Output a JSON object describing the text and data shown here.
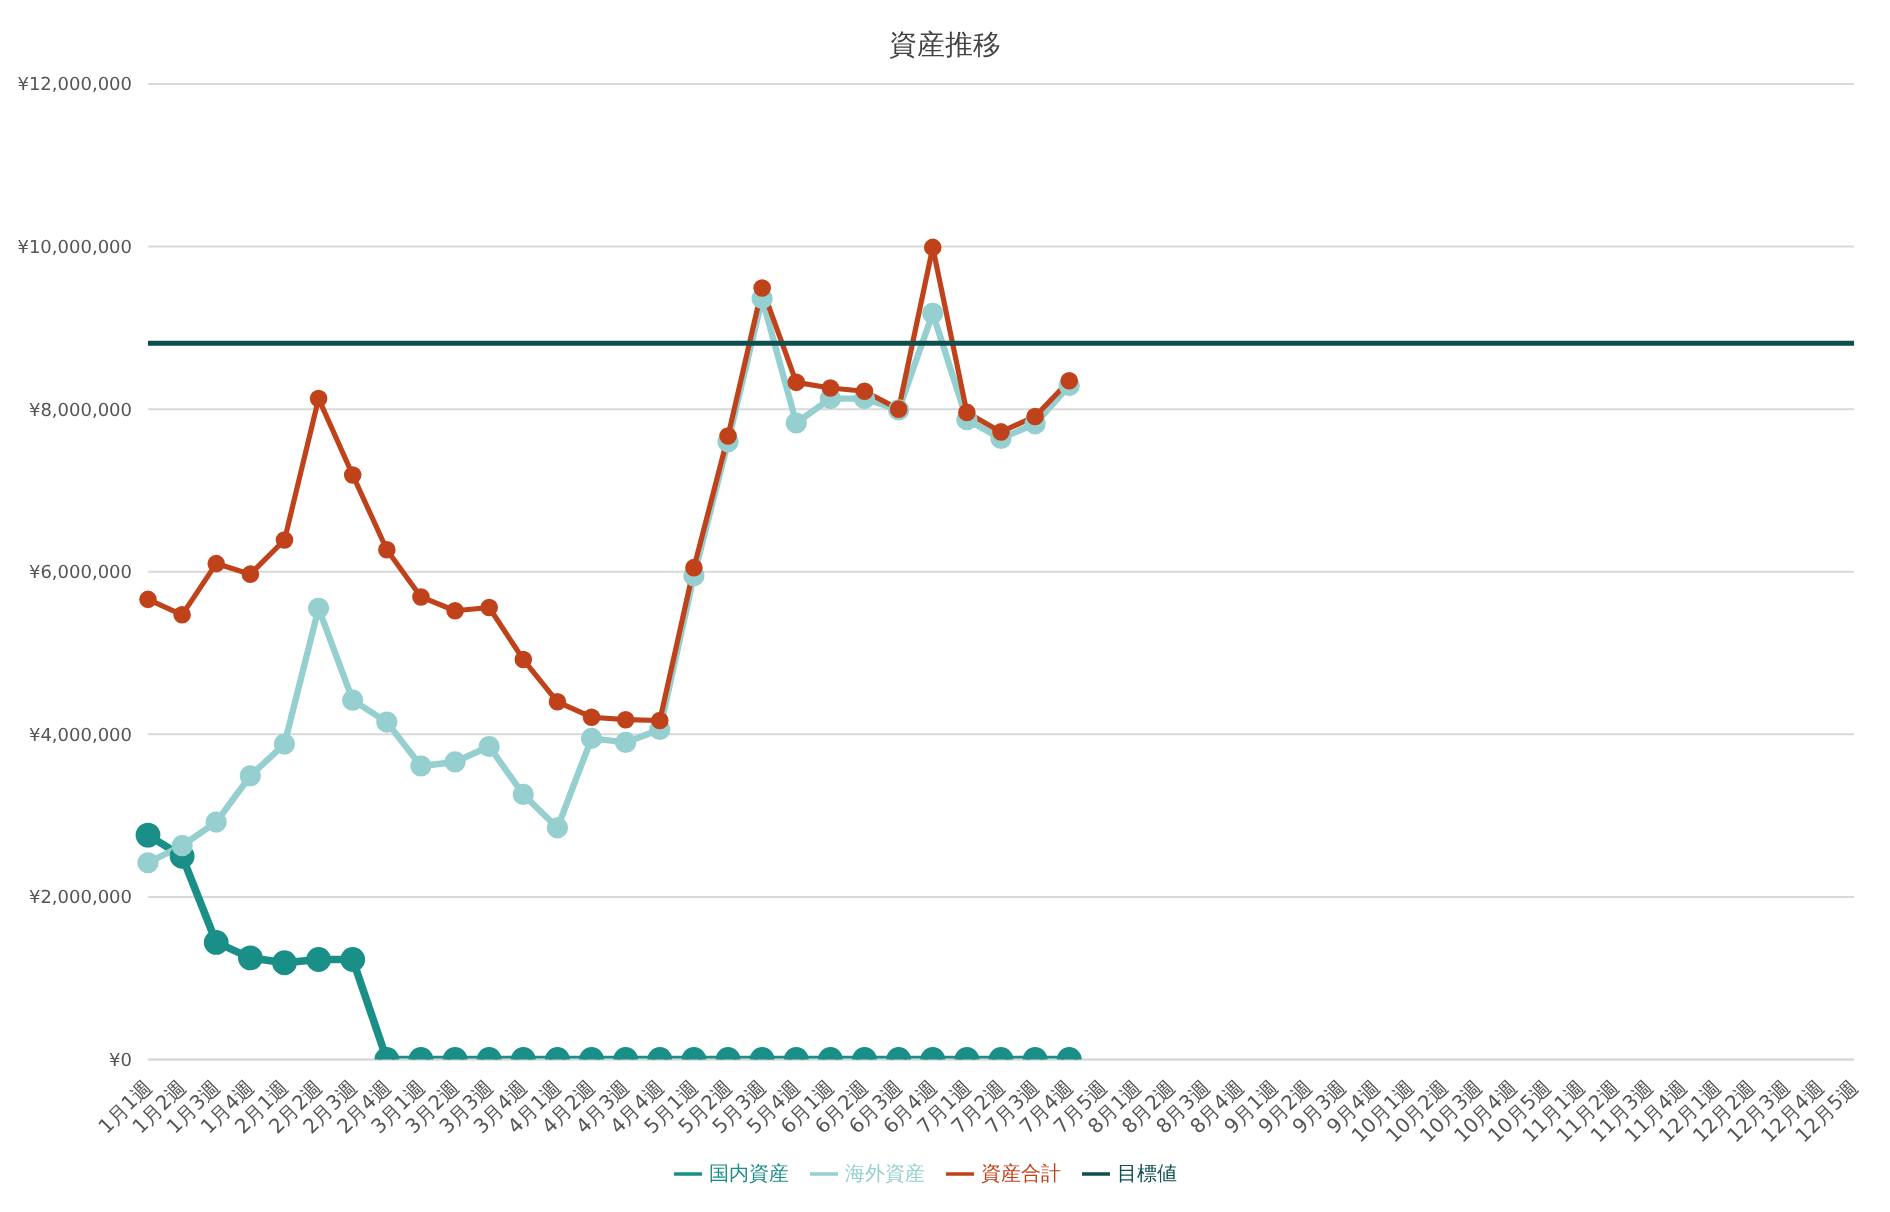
{
  "chart_data": {
    "type": "line",
    "title": "資産推移",
    "categories": [
      "1月1週",
      "1月2週",
      "1月3週",
      "1月4週",
      "2月1週",
      "2月2週",
      "2月3週",
      "2月4週",
      "3月1週",
      "3月2週",
      "3月3週",
      "3月4週",
      "4月1週",
      "4月2週",
      "4月3週",
      "4月4週",
      "5月1週",
      "5月2週",
      "5月3週",
      "5月4週",
      "6月1週",
      "6月2週",
      "6月3週",
      "6月4週",
      "7月1週",
      "7月2週",
      "7月3週",
      "7月4週",
      "7月5週",
      "8月1週",
      "8月2週",
      "8月3週",
      "8月4週",
      "9月1週",
      "9月2週",
      "9月3週",
      "9月4週",
      "10月1週",
      "10月2週",
      "10月3週",
      "10月4週",
      "10月5週",
      "11月1週",
      "11月2週",
      "11月3週",
      "11月4週",
      "12月1週",
      "12月2週",
      "12月3週",
      "12月4週",
      "12月5週"
    ],
    "series": [
      {
        "name": "国内資産",
        "color": "#1a8f87",
        "marker": "circle",
        "values": [
          2760000,
          2500000,
          1440000,
          1250000,
          1190000,
          1230000,
          1230000,
          0,
          0,
          0,
          0,
          0,
          0,
          0,
          0,
          0,
          0,
          0,
          0,
          0,
          0,
          0,
          0,
          0,
          0,
          0,
          0,
          0,
          null,
          null,
          null,
          null,
          null,
          null,
          null,
          null,
          null,
          null,
          null,
          null,
          null,
          null,
          null,
          null,
          null,
          null,
          null,
          null,
          null,
          null,
          null
        ]
      },
      {
        "name": "海外資産",
        "color": "#96cfcf",
        "marker": "circle",
        "values": [
          2420000,
          2630000,
          2920000,
          3490000,
          3880000,
          5550000,
          4420000,
          4150000,
          3610000,
          3660000,
          3850000,
          3260000,
          2850000,
          3950000,
          3900000,
          4060000,
          5950000,
          7600000,
          9360000,
          7830000,
          8130000,
          8130000,
          7990000,
          9180000,
          7870000,
          7640000,
          7820000,
          8290000,
          null,
          null,
          null,
          null,
          null,
          null,
          null,
          null,
          null,
          null,
          null,
          null,
          null,
          null,
          null,
          null,
          null,
          null,
          null,
          null,
          null,
          null,
          null
        ]
      },
      {
        "name": "資産合計",
        "color": "#c0421a",
        "marker": "circle",
        "values": [
          5660000,
          5470000,
          6100000,
          5970000,
          6390000,
          8130000,
          7190000,
          6270000,
          5690000,
          5520000,
          5560000,
          4920000,
          4400000,
          4210000,
          4180000,
          4170000,
          6050000,
          7670000,
          9490000,
          8330000,
          8260000,
          8220000,
          8000000,
          9990000,
          7960000,
          7720000,
          7910000,
          8350000,
          null,
          null,
          null,
          null,
          null,
          null,
          null,
          null,
          null,
          null,
          null,
          null,
          null,
          null,
          null,
          null,
          null,
          null,
          null,
          null,
          null,
          null,
          null
        ]
      },
      {
        "name": "目標値",
        "color": "#0d4f4f",
        "marker": "none",
        "values": [
          8810000,
          8810000,
          8810000,
          8810000,
          8810000,
          8810000,
          8810000,
          8810000,
          8810000,
          8810000,
          8810000,
          8810000,
          8810000,
          8810000,
          8810000,
          8810000,
          8810000,
          8810000,
          8810000,
          8810000,
          8810000,
          8810000,
          8810000,
          8810000,
          8810000,
          8810000,
          8810000,
          8810000,
          8810000,
          8810000,
          8810000,
          8810000,
          8810000,
          8810000,
          8810000,
          8810000,
          8810000,
          8810000,
          8810000,
          8810000,
          8810000,
          8810000,
          8810000,
          8810000,
          8810000,
          8810000,
          8810000,
          8810000,
          8810000,
          8810000,
          8810000
        ]
      }
    ],
    "ylim": [
      0,
      12000000
    ],
    "yticks": [
      {
        "value": 0,
        "label": "¥0"
      },
      {
        "value": 2000000,
        "label": "¥2,000,000"
      },
      {
        "value": 4000000,
        "label": "¥4,000,000"
      },
      {
        "value": 6000000,
        "label": "¥6,000,000"
      },
      {
        "value": 8000000,
        "label": "¥8,000,000"
      },
      {
        "value": 10000000,
        "label": "¥10,000,000"
      },
      {
        "value": 12000000,
        "label": "¥12,000,000"
      }
    ],
    "grid": "y",
    "legend": "bottom"
  }
}
